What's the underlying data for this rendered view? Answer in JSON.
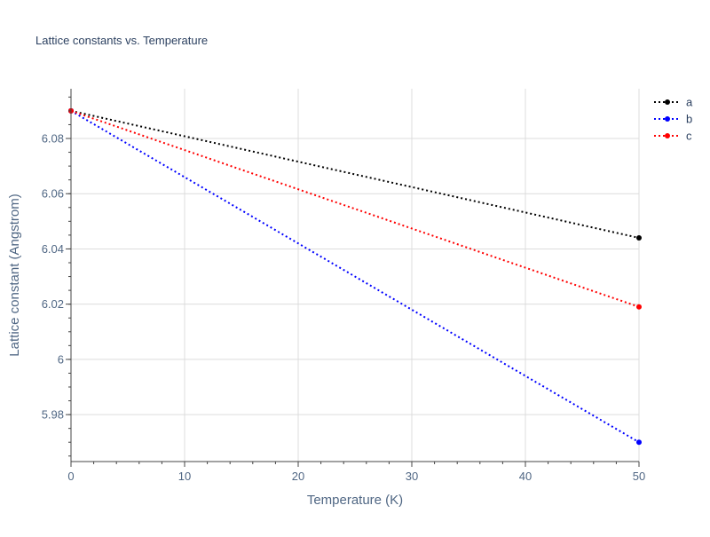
{
  "chart_data": {
    "type": "line",
    "title": "Lattice constants vs. Temperature",
    "xlabel": "Temperature (K)",
    "ylabel": "Lattice constant (Angstrom)",
    "xlim": [
      0,
      50
    ],
    "ylim": [
      5.963,
      6.098
    ],
    "x_ticks": [
      0,
      10,
      20,
      30,
      40,
      50
    ],
    "x_tick_labels": [
      "0",
      "10",
      "20",
      "30",
      "40",
      "50"
    ],
    "y_ticks": [
      5.98,
      6.0,
      6.02,
      6.04,
      6.06,
      6.08
    ],
    "y_tick_labels": [
      "5.98",
      "6",
      "6.02",
      "6.04",
      "6.06",
      "6.08"
    ],
    "grid": true,
    "legend_position": "top-right",
    "series": [
      {
        "name": "a",
        "color": "#000000",
        "x": [
          0,
          50
        ],
        "y": [
          6.09,
          6.044
        ]
      },
      {
        "name": "b",
        "color": "#0000ff",
        "x": [
          0,
          50
        ],
        "y": [
          6.09,
          5.97
        ]
      },
      {
        "name": "c",
        "color": "#ff0000",
        "x": [
          0,
          50
        ],
        "y": [
          6.09,
          6.019
        ]
      }
    ]
  }
}
